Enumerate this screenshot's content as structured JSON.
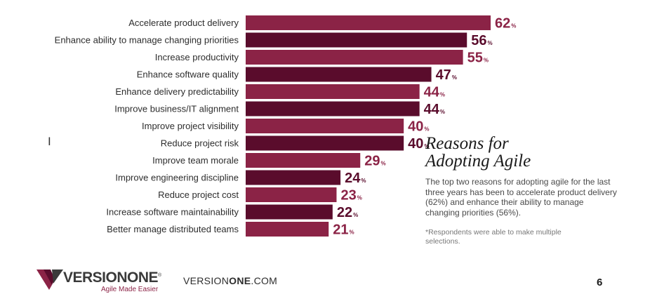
{
  "chart_data": {
    "type": "bar",
    "orientation": "horizontal",
    "categories": [
      "Accelerate product delivery",
      "Enhance ability to manage changing priorities",
      "Increase productivity",
      "Enhance software quality",
      "Enhance delivery predictability",
      "Improve business/IT alignment",
      "Improve project visibility",
      "Reduce project risk",
      "Improve team morale",
      "Improve engineering discipline",
      "Reduce project cost",
      "Increase software maintainability",
      "Better manage distributed teams"
    ],
    "values": [
      62,
      56,
      55,
      47,
      44,
      44,
      40,
      40,
      29,
      24,
      23,
      22,
      21
    ],
    "value_suffix": "%",
    "xlim": [
      0,
      100
    ],
    "grid": false,
    "title": "",
    "xlabel": "",
    "ylabel": "",
    "colors": {
      "light": "#8b2346",
      "dark": "#5a0c2c"
    }
  },
  "sidebar": {
    "title_line1": "Reasons for",
    "title_line2": "Adopting Agile",
    "body": "The top two reasons for adopting agile for the last three years has been to accelerate product delivery (62%) and enhance their ability to manage changing priorities (56%).",
    "note": "*Respondents were able to make multiple selections."
  },
  "footer": {
    "logo_text": "VERSIONONE",
    "logo_reg": "®",
    "logo_tagline": "Agile Made Easier",
    "url_prefix": "VERSION",
    "url_bold": "ONE",
    "url_suffix": ".COM",
    "page_number": "6"
  },
  "icons": {
    "text_cursor": "text-cursor-icon",
    "logo_mark": "versionone-v-logo-icon"
  },
  "cursor_glyph": "I"
}
